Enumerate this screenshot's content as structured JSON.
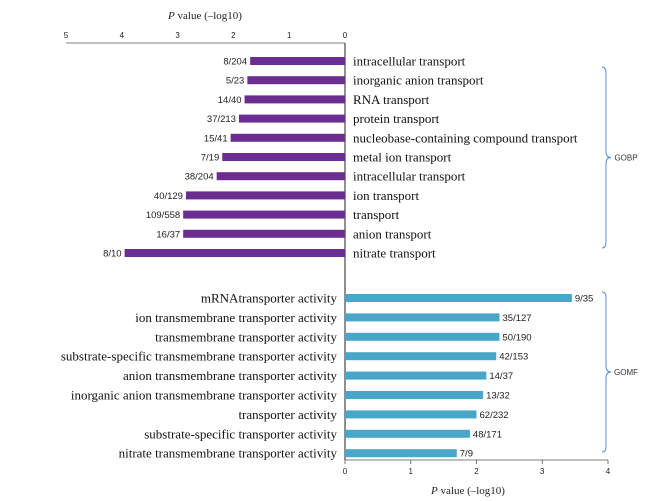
{
  "chart_data": [
    {
      "type": "bar",
      "orientation": "horizontal",
      "direction": "leftward",
      "group": "GOBP",
      "xlabel_prefix": "P",
      "xlabel_rest": " value (–log10)",
      "xlim": [
        0,
        5
      ],
      "ticks": [
        "5",
        "4",
        "3",
        "2",
        "1",
        "0"
      ],
      "color": "#6b2d8f",
      "bars": [
        {
          "label": "intracellular transport",
          "value": 1.7,
          "ratio": "8/204"
        },
        {
          "label": "inorganic anion transport",
          "value": 1.75,
          "ratio": "5/23"
        },
        {
          "label": "RNA transport",
          "value": 1.8,
          "ratio": "14/40"
        },
        {
          "label": "protein transport",
          "value": 1.9,
          "ratio": "37/213"
        },
        {
          "label": "nucleobase-containing compound transport",
          "value": 2.05,
          "ratio": "15/41"
        },
        {
          "label": "metal ion transport",
          "value": 2.2,
          "ratio": "7/19"
        },
        {
          "label": "intracellular transport",
          "value": 2.3,
          "ratio": "38/204"
        },
        {
          "label": "ion transport",
          "value": 2.85,
          "ratio": "40/129"
        },
        {
          "label": "transport",
          "value": 2.9,
          "ratio": "109/558"
        },
        {
          "label": "anion transport",
          "value": 2.9,
          "ratio": "16/37"
        },
        {
          "label": "nitrate transport",
          "value": 3.95,
          "ratio": "8/10"
        }
      ]
    },
    {
      "type": "bar",
      "orientation": "horizontal",
      "direction": "rightward",
      "group": "GOMF",
      "xlabel_prefix": "P",
      "xlabel_rest": " value (–log10)",
      "xlim": [
        0,
        4
      ],
      "ticks": [
        "0",
        "1",
        "2",
        "3",
        "4"
      ],
      "color": "#4aa6c8",
      "bars": [
        {
          "label": "mRNAtransporter activity",
          "value": 3.45,
          "ratio": "9/35"
        },
        {
          "label": "ion transmembrane transporter activity",
          "value": 2.35,
          "ratio": "35/127"
        },
        {
          "label": "transmembrane transporter activity",
          "value": 2.35,
          "ratio": "50/190"
        },
        {
          "label": "substrate-specific transmembrane transporter activity",
          "value": 2.3,
          "ratio": "42/153"
        },
        {
          "label": "anion transmembrane transporter activity",
          "value": 2.15,
          "ratio": "14/37"
        },
        {
          "label": "inorganic anion transmembrane transporter activity",
          "value": 2.1,
          "ratio": "13/32"
        },
        {
          "label": "transporter activity",
          "value": 2.0,
          "ratio": "62/232"
        },
        {
          "label": "substrate-specific transporter activity",
          "value": 1.9,
          "ratio": "48/171"
        },
        {
          "label": "nitrate transmembrane transporter activity",
          "value": 1.7,
          "ratio": "7/9"
        }
      ]
    }
  ]
}
